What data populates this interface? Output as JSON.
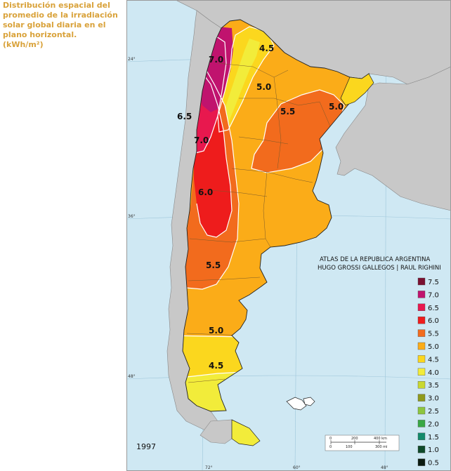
{
  "caption": {
    "lines": [
      "Distribución espacial del",
      "promedio de la irradiación",
      "solar global diaria en el",
      "plano horizontal.",
      "(kWh/m²)"
    ]
  },
  "map": {
    "credit_line_1": "ATLAS DE LA REPUBLICA ARGENTINA",
    "credit_line_2": "HUGO GROSSI GALLEGOS | RAUL RIGHINI",
    "year": "1997",
    "latitude_labels": [
      "24°",
      "36°",
      "48°"
    ],
    "longitude_labels": [
      "72°",
      "60°",
      "48°"
    ],
    "zone_labels": [
      {
        "id": "lbl-45-north",
        "text": "4.5"
      },
      {
        "id": "lbl-70-north",
        "text": "7.0"
      },
      {
        "id": "lbl-50-center",
        "text": "5.0"
      },
      {
        "id": "lbl-55-ne",
        "text": "5.5"
      },
      {
        "id": "lbl-50-misiones",
        "text": "5.0"
      },
      {
        "id": "lbl-65-west",
        "text": "6.5"
      },
      {
        "id": "lbl-70-mid",
        "text": "7.0"
      },
      {
        "id": "lbl-60-cuyo",
        "text": "6.0"
      },
      {
        "id": "lbl-55-south",
        "text": "5.5"
      },
      {
        "id": "lbl-50-south",
        "text": "5.0"
      },
      {
        "id": "lbl-45-south",
        "text": "4.5"
      }
    ],
    "scale_bar": {
      "km_labels": [
        "0",
        "200",
        "400 km"
      ],
      "mi_labels": [
        "0",
        "100",
        "300 mi"
      ]
    },
    "colors": {
      "ocean": "#cfe8f3",
      "neighbors": "#c8c8c8",
      "z75": "#7a1030",
      "z70": "#c0136e",
      "z65": "#e8184e",
      "z60": "#ee1c1c",
      "z55": "#f26b1d",
      "z50": "#fbac18",
      "z45": "#fbd71e",
      "z40": "#f2ec3a"
    }
  },
  "legend": {
    "items": [
      {
        "value": "7.5",
        "color": "#7a1030"
      },
      {
        "value": "7.0",
        "color": "#c0136e"
      },
      {
        "value": "6.5",
        "color": "#e8184e"
      },
      {
        "value": "6.0",
        "color": "#ee1c1c"
      },
      {
        "value": "5.5",
        "color": "#f26b1d"
      },
      {
        "value": "5.0",
        "color": "#fbac18"
      },
      {
        "value": "4.5",
        "color": "#fbd71e"
      },
      {
        "value": "4.0",
        "color": "#f2ec3a"
      },
      {
        "value": "3.5",
        "color": "#c9d830"
      },
      {
        "value": "3.0",
        "color": "#8f9a1c"
      },
      {
        "value": "2.5",
        "color": "#8dc63f"
      },
      {
        "value": "2.0",
        "color": "#39a845"
      },
      {
        "value": "1.5",
        "color": "#138a6a"
      },
      {
        "value": "1.0",
        "color": "#0f4a2a"
      },
      {
        "value": "0.5",
        "color": "#0a1a10"
      }
    ]
  }
}
